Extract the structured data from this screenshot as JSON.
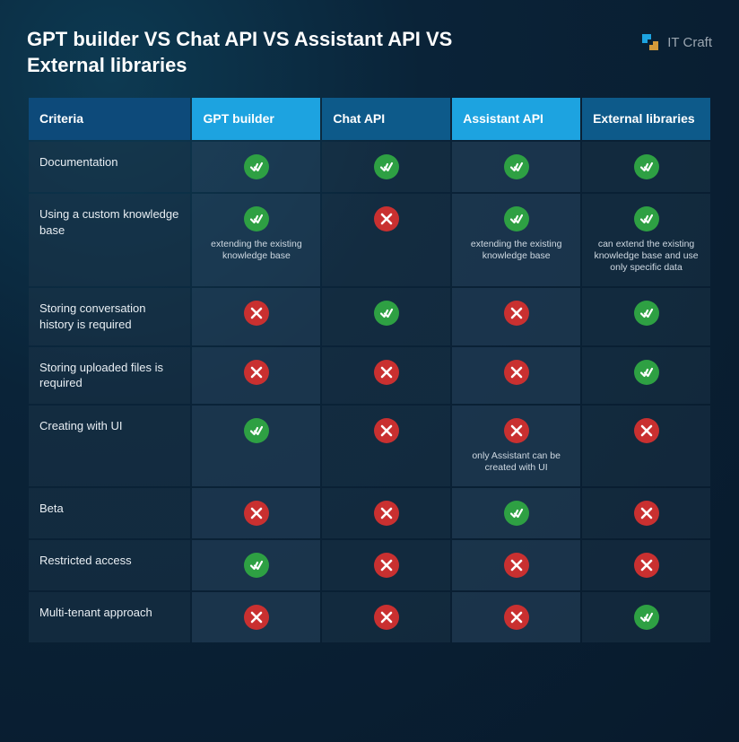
{
  "title": "GPT builder VS Chat API VS Assistant API VS External libraries",
  "brand": "IT Craft",
  "colors": {
    "bg_gradient_inner": "#0d3a52",
    "bg_gradient_mid": "#0a2338",
    "bg_gradient_outer": "#081a2c",
    "header_criteria_bg": "#0d4a7a",
    "header_col_bg": "#0d5a8a",
    "header_highlight_bg": "#1da3e0",
    "cell_bg": "rgba(30,55,75,0.45)",
    "cell_highlight_bg": "rgba(40,70,95,0.55)",
    "yes_bg": "#2ea043",
    "no_bg": "#c93030",
    "text": "#ffffff",
    "caption_text": "#cfd9e2",
    "logo_text": "#9aa5b0",
    "logo_blue": "#1da3e0",
    "logo_orange": "#d49a3a"
  },
  "typography": {
    "title_fontsize": 22,
    "header_fontsize": 14,
    "cell_fontsize": 13,
    "caption_fontsize": 10.5,
    "font_family": "Arial"
  },
  "table": {
    "type": "table",
    "criteria_header": "Criteria",
    "columns": [
      {
        "label": "GPT builder",
        "highlight": true
      },
      {
        "label": "Chat API",
        "highlight": false
      },
      {
        "label": "Assistant API",
        "highlight": true
      },
      {
        "label": "External libraries",
        "highlight": false
      }
    ],
    "column_widths_pct": [
      24,
      19,
      19,
      19,
      19
    ],
    "rows": [
      {
        "criteria": "Documentation",
        "cells": [
          {
            "status": "yes",
            "caption": ""
          },
          {
            "status": "yes",
            "caption": ""
          },
          {
            "status": "yes",
            "caption": ""
          },
          {
            "status": "yes",
            "caption": ""
          }
        ]
      },
      {
        "criteria": "Using a custom knowledge base",
        "cells": [
          {
            "status": "yes",
            "caption": "extending the existing knowledge base"
          },
          {
            "status": "no",
            "caption": ""
          },
          {
            "status": "yes",
            "caption": "extending the existing knowledge base"
          },
          {
            "status": "yes",
            "caption": "can extend the existing knowledge base and use only specific data"
          }
        ]
      },
      {
        "criteria": "Storing conversation history is required",
        "cells": [
          {
            "status": "no",
            "caption": ""
          },
          {
            "status": "yes",
            "caption": ""
          },
          {
            "status": "no",
            "caption": ""
          },
          {
            "status": "yes",
            "caption": ""
          }
        ]
      },
      {
        "criteria": "Storing uploaded files is required",
        "cells": [
          {
            "status": "no",
            "caption": ""
          },
          {
            "status": "no",
            "caption": ""
          },
          {
            "status": "no",
            "caption": ""
          },
          {
            "status": "yes",
            "caption": ""
          }
        ]
      },
      {
        "criteria": "Creating with UI",
        "cells": [
          {
            "status": "yes",
            "caption": ""
          },
          {
            "status": "no",
            "caption": ""
          },
          {
            "status": "no",
            "caption": "only Assistant can be created with UI"
          },
          {
            "status": "no",
            "caption": ""
          }
        ]
      },
      {
        "criteria": "Beta",
        "cells": [
          {
            "status": "no",
            "caption": ""
          },
          {
            "status": "no",
            "caption": ""
          },
          {
            "status": "yes",
            "caption": ""
          },
          {
            "status": "no",
            "caption": ""
          }
        ]
      },
      {
        "criteria": "Restricted access",
        "cells": [
          {
            "status": "yes",
            "caption": ""
          },
          {
            "status": "no",
            "caption": ""
          },
          {
            "status": "no",
            "caption": ""
          },
          {
            "status": "no",
            "caption": ""
          }
        ]
      },
      {
        "criteria": "Multi-tenant approach",
        "cells": [
          {
            "status": "no",
            "caption": ""
          },
          {
            "status": "no",
            "caption": ""
          },
          {
            "status": "no",
            "caption": ""
          },
          {
            "status": "yes",
            "caption": ""
          }
        ]
      }
    ]
  }
}
